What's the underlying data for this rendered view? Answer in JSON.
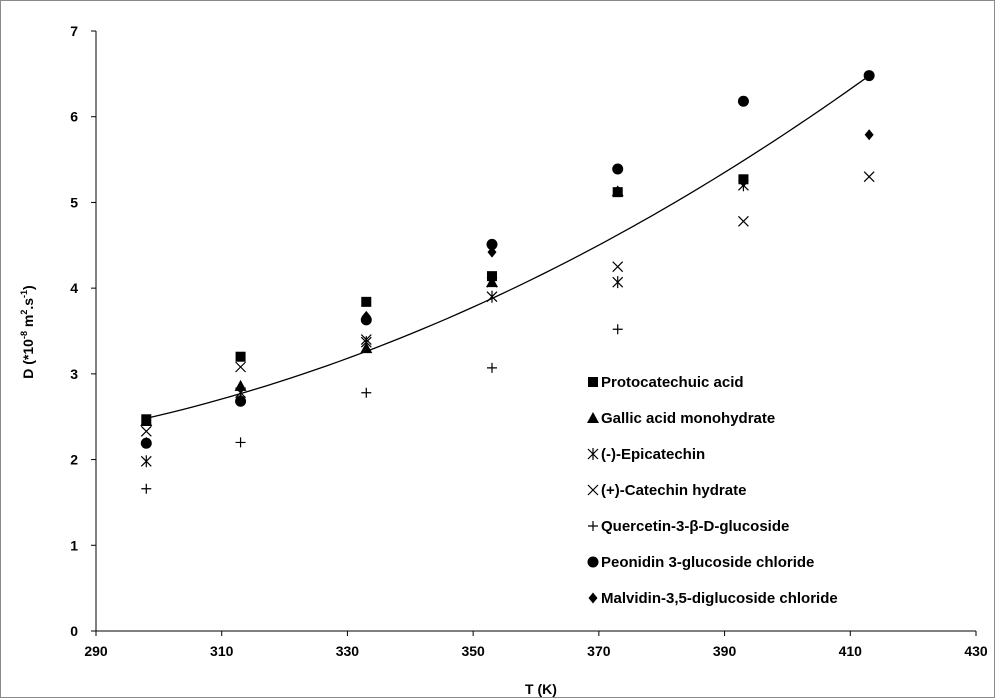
{
  "chart_data": {
    "type": "scatter",
    "title": "",
    "xlabel": "T (K)",
    "ylabel": {
      "base": "D  (*10",
      "exp1": "-8",
      "mid": " m",
      "exp2": "2",
      "mid2": ".s",
      "exp3": "-1",
      "end": ")"
    },
    "xlim": [
      290,
      430
    ],
    "ylim": [
      0,
      7
    ],
    "xticks": [
      290,
      310,
      330,
      350,
      370,
      390,
      410,
      430
    ],
    "yticks": [
      0,
      1,
      2,
      3,
      4,
      5,
      6,
      7
    ],
    "grid": false,
    "legend_position": "lower-right",
    "series": [
      {
        "name": "Protocatechuic acid",
        "marker": "square",
        "x": [
          298,
          313,
          333,
          353,
          373,
          393
        ],
        "y": [
          2.47,
          3.2,
          3.84,
          4.14,
          5.12,
          5.27
        ]
      },
      {
        "name": "Gallic acid monohydrate",
        "marker": "triangle",
        "x": [
          298,
          313,
          333,
          353,
          373
        ],
        "y": [
          2.45,
          2.86,
          3.3,
          4.07,
          5.13
        ]
      },
      {
        "name": "(-)-Epicatechin",
        "marker": "asterisk",
        "x": [
          298,
          313,
          333,
          353,
          373,
          393
        ],
        "y": [
          1.98,
          2.78,
          3.37,
          3.9,
          4.07,
          5.2
        ]
      },
      {
        "name": "(+)-Catechin hydrate",
        "marker": "x",
        "x": [
          298,
          313,
          333,
          353,
          373,
          393,
          413
        ],
        "y": [
          2.33,
          3.08,
          3.4,
          4.07,
          4.25,
          4.78,
          5.3
        ]
      },
      {
        "name": "Quercetin-3-β-D-glucoside",
        "marker": "plus",
        "x": [
          298,
          313,
          333,
          353,
          373
        ],
        "y": [
          1.66,
          2.2,
          2.78,
          3.07,
          3.52
        ]
      },
      {
        "name": "Peonidin 3-glucoside chloride",
        "marker": "circle",
        "x": [
          298,
          313,
          333,
          353,
          373,
          393,
          413
        ],
        "y": [
          2.19,
          2.68,
          3.63,
          4.51,
          5.39,
          6.18,
          6.48
        ]
      },
      {
        "name": "Malvidin-3,5-diglucoside chloride",
        "marker": "diamond",
        "x": [
          298,
          313,
          333,
          353,
          373,
          393,
          413
        ],
        "y": [
          2.2,
          2.7,
          3.67,
          4.42,
          5.13,
          5.24,
          5.79
        ]
      }
    ],
    "trendline": {
      "type": "polynomial",
      "x": [
        298,
        313,
        333,
        353,
        373,
        393,
        413
      ],
      "y": [
        2.47,
        2.78,
        3.28,
        3.86,
        4.62,
        5.49,
        6.48
      ]
    }
  }
}
